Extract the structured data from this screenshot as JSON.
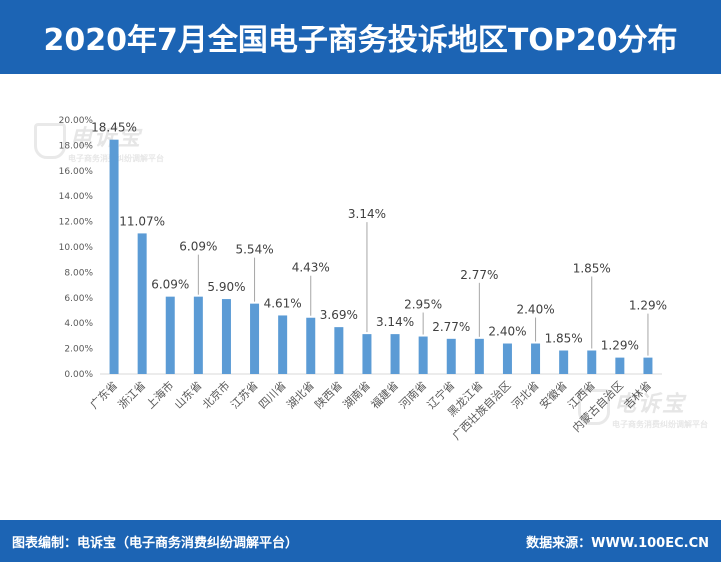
{
  "header": {
    "title": "2020年7月全国电子商务投诉地区TOP20分布"
  },
  "footer": {
    "left": "图表编制：电诉宝（电子商务消费纠纷调解平台）",
    "right": "数据来源：WWW.100EC.CN"
  },
  "watermark": {
    "logo_text": "电诉宝",
    "sub_text": "电子商务消费纠纷调解平台"
  },
  "colors": {
    "brand": "#1c64b4",
    "bar": "#5b9bd5",
    "leader": "#a6a6a6"
  },
  "chart_data": {
    "type": "bar",
    "title": "",
    "xlabel": "",
    "ylabel": "",
    "ylim": [
      0,
      20
    ],
    "yticks": [
      "0.00%",
      "2.00%",
      "4.00%",
      "6.00%",
      "8.00%",
      "10.00%",
      "12.00%",
      "14.00%",
      "16.00%",
      "18.00%",
      "20.00%"
    ],
    "grid": false,
    "legend": "none",
    "categories": [
      "广东省",
      "浙江省",
      "上海市",
      "山东省",
      "北京市",
      "江苏省",
      "四川省",
      "湖北省",
      "陕西省",
      "湖南省",
      "福建省",
      "河南省",
      "辽宁省",
      "黑龙江省",
      "广西壮族自治区",
      "河北省",
      "安徽省",
      "江西省",
      "内蒙古自治区",
      "吉林省"
    ],
    "values": [
      18.45,
      11.07,
      6.09,
      6.09,
      5.9,
      5.54,
      4.61,
      4.43,
      3.69,
      3.14,
      3.14,
      2.95,
      2.77,
      2.77,
      2.4,
      2.4,
      1.85,
      1.85,
      1.29,
      1.29
    ],
    "data_labels": [
      "18.45%",
      "11.07%",
      "6.09%",
      "6.09%",
      "5.90%",
      "5.54%",
      "4.61%",
      "4.43%",
      "3.69%",
      "3.14%",
      "3.14%",
      "2.95%",
      "2.77%",
      "2.77%",
      "2.40%",
      "2.40%",
      "1.85%",
      "1.85%",
      "1.29%",
      "1.29%"
    ]
  }
}
